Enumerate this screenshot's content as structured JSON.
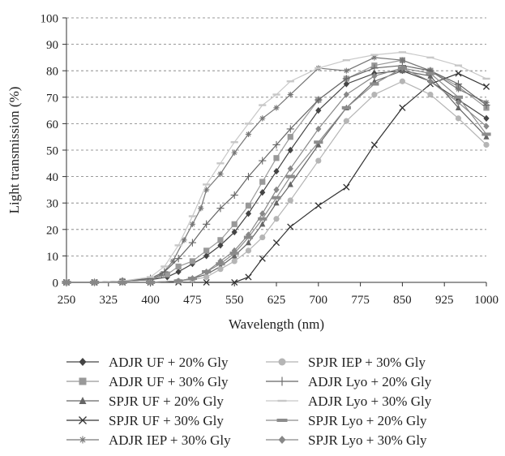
{
  "chart_data": {
    "type": "line",
    "xlabel": "Wavelength (nm)",
    "ylabel": "Light transmission (%)",
    "xlim": [
      250,
      1000
    ],
    "ylim": [
      0,
      100
    ],
    "xticks": [
      250,
      325,
      400,
      475,
      550,
      625,
      700,
      775,
      850,
      925,
      1000
    ],
    "yticks": [
      0,
      10,
      20,
      30,
      40,
      50,
      60,
      70,
      80,
      90,
      100
    ],
    "x_tick_labels": [
      "250",
      "325",
      "400",
      "475",
      "550",
      "625",
      "700",
      "775",
      "850",
      "925",
      "1000"
    ],
    "y_tick_labels": [
      "0",
      "10",
      "20",
      "30",
      "40",
      "50",
      "60",
      "70",
      "80",
      "90",
      "100"
    ],
    "grid": "horizontal dashed",
    "legend_position": "bottom",
    "series": [
      {
        "name": "ADJR UF + 20% Gly",
        "marker": "diamond",
        "color": "#444444",
        "x": [
          250,
          300,
          350,
          400,
          430,
          450,
          475,
          500,
          525,
          550,
          575,
          600,
          625,
          650,
          700,
          750,
          800,
          850,
          900,
          950,
          1000
        ],
        "y": [
          0,
          0,
          0.5,
          1,
          2,
          4,
          7,
          10,
          14,
          19,
          26,
          34,
          42,
          50,
          65,
          75,
          79,
          80,
          76,
          69,
          62
        ]
      },
      {
        "name": "ADJR UF + 30% Gly",
        "marker": "square",
        "color": "#999999",
        "x": [
          250,
          300,
          350,
          400,
          430,
          450,
          475,
          500,
          525,
          550,
          575,
          600,
          625,
          650,
          700,
          750,
          800,
          850,
          900,
          950,
          1000
        ],
        "y": [
          0,
          0,
          0.5,
          1,
          3,
          6,
          8,
          12,
          16,
          22,
          29,
          38,
          47,
          55,
          69,
          77,
          82,
          84,
          80,
          74,
          66
        ]
      },
      {
        "name": "SPJR UF + 20% Gly",
        "marker": "triangle",
        "color": "#666666",
        "x": [
          250,
          300,
          350,
          400,
          450,
          475,
          500,
          525,
          550,
          575,
          600,
          625,
          650,
          700,
          750,
          800,
          850,
          900,
          950,
          1000
        ],
        "y": [
          0,
          0,
          0,
          0,
          0.5,
          1.5,
          3,
          6,
          10,
          15,
          22,
          30,
          37,
          52,
          66,
          76,
          80,
          78,
          66,
          55
        ]
      },
      {
        "name": "SPJR UF + 30% Gly",
        "marker": "x",
        "color": "#333333",
        "x": [
          250,
          300,
          350,
          400,
          450,
          500,
          550,
          575,
          600,
          625,
          650,
          700,
          750,
          800,
          850,
          900,
          950,
          1000
        ],
        "y": [
          0,
          0,
          0,
          0,
          0,
          0,
          0,
          2,
          9,
          15,
          21,
          29,
          36,
          52,
          66,
          75,
          79,
          74
        ]
      },
      {
        "name": "ADJR IEP + 30% Gly",
        "marker": "asterisk",
        "color": "#777777",
        "x": [
          250,
          300,
          350,
          400,
          420,
          440,
          460,
          475,
          490,
          500,
          525,
          550,
          575,
          600,
          625,
          650,
          700,
          750,
          800,
          850,
          900,
          950,
          1000
        ],
        "y": [
          0,
          0,
          0.5,
          1,
          3,
          8,
          16,
          22,
          28,
          35,
          41,
          49,
          56,
          62,
          66,
          71,
          81,
          80,
          85,
          84,
          80,
          73,
          68
        ]
      },
      {
        "name": "SPJR IEP + 30% Gly",
        "marker": "circle",
        "color": "#b5b5b5",
        "x": [
          250,
          300,
          350,
          400,
          450,
          475,
          500,
          525,
          550,
          575,
          600,
          625,
          650,
          700,
          750,
          800,
          850,
          900,
          950,
          1000
        ],
        "y": [
          0,
          0,
          0,
          0,
          0.5,
          1,
          2,
          5,
          8,
          12,
          17,
          24,
          31,
          46,
          61,
          71,
          76,
          71,
          62,
          52
        ]
      },
      {
        "name": "ADJR Lyo + 20% Gly",
        "marker": "plus",
        "color": "#666666",
        "x": [
          250,
          300,
          350,
          400,
          425,
          450,
          475,
          500,
          525,
          550,
          575,
          600,
          625,
          650,
          700,
          750,
          800,
          850,
          900,
          950,
          1000
        ],
        "y": [
          0,
          0,
          0.5,
          1.5,
          4,
          9,
          15,
          22,
          28,
          33,
          40,
          46,
          52,
          58,
          69,
          77,
          81,
          82,
          80,
          75,
          67
        ]
      },
      {
        "name": "ADJR Lyo + 30% Gly",
        "marker": "dash",
        "color": "#c8c8c8",
        "x": [
          250,
          300,
          350,
          400,
          425,
          450,
          475,
          500,
          525,
          550,
          575,
          600,
          625,
          650,
          700,
          750,
          800,
          850,
          900,
          950,
          1000
        ],
        "y": [
          0,
          0,
          0.5,
          2,
          6,
          14,
          25,
          37,
          45,
          53,
          60,
          67,
          71,
          76,
          81,
          84,
          86,
          87,
          85,
          82,
          77
        ]
      },
      {
        "name": "SPJR Lyo + 20% Gly",
        "marker": "bar",
        "color": "#8c8c8c",
        "x": [
          250,
          300,
          350,
          400,
          450,
          475,
          500,
          525,
          550,
          575,
          600,
          625,
          650,
          700,
          750,
          800,
          850,
          900,
          950,
          1000
        ],
        "y": [
          0,
          0,
          0,
          0,
          0.5,
          1.5,
          4,
          7,
          11,
          17,
          24,
          32,
          40,
          53,
          66,
          75,
          81,
          79,
          70,
          56
        ]
      },
      {
        "name": "SPJR Lyo + 30% Gly",
        "marker": "diamond",
        "color": "#888888",
        "x": [
          250,
          300,
          350,
          400,
          450,
          475,
          500,
          525,
          550,
          575,
          600,
          625,
          650,
          700,
          750,
          800,
          850,
          900,
          950,
          1000
        ],
        "y": [
          0,
          0,
          0,
          0,
          0.5,
          1.5,
          4,
          8,
          12,
          18,
          26,
          35,
          43,
          58,
          71,
          78,
          81,
          76,
          68,
          59
        ]
      }
    ]
  }
}
